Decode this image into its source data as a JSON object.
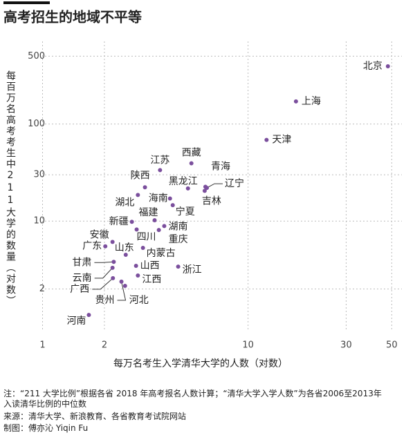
{
  "chart_data": {
    "type": "scatter",
    "title": "高考招生的地域不平等",
    "x_label": "每万名考生入学清华大学的人数（对数）",
    "y_label": "每百万名高考考生中211大学的数量（对数）",
    "x_log": true,
    "y_log": true,
    "grid": true,
    "color": "#7b4f9d",
    "xlim": [
      0.88,
      56
    ],
    "ylim": [
      0.73,
      710
    ],
    "xticks": [
      1,
      2,
      10,
      30,
      50
    ],
    "yticks": [
      2,
      10,
      30,
      100,
      500
    ],
    "points": [
      {
        "name": "北京",
        "x": 47.9,
        "y": 394
      },
      {
        "name": "上海",
        "x": 17.1,
        "y": 171
      },
      {
        "name": "天津",
        "x": 12.3,
        "y": 68.7
      },
      {
        "name": "西藏",
        "x": 5.3,
        "y": 39.4
      },
      {
        "name": "江苏",
        "x": 3.73,
        "y": 33.5
      },
      {
        "name": "青海",
        "x": 6.2,
        "y": 22.6
      },
      {
        "name": "辽宁",
        "x": 6.3,
        "y": 22.0
      },
      {
        "name": "黑龙江",
        "x": 5.1,
        "y": 21.7
      },
      {
        "name": "吉林",
        "x": 6.15,
        "y": 20.5
      },
      {
        "name": "陕西",
        "x": 3.15,
        "y": 22.3
      },
      {
        "name": "湖北",
        "x": 2.91,
        "y": 18.6
      },
      {
        "name": "海南",
        "x": 4.17,
        "y": 17.1
      },
      {
        "name": "宁夏",
        "x": 4.3,
        "y": 14.6
      },
      {
        "name": "新疆",
        "x": 2.72,
        "y": 9.84
      },
      {
        "name": "福建",
        "x": 3.51,
        "y": 10.2
      },
      {
        "name": "湖南",
        "x": 3.91,
        "y": 8.9
      },
      {
        "name": "四川",
        "x": 2.87,
        "y": 8.2
      },
      {
        "name": "重庆",
        "x": 3.68,
        "y": 8.1
      },
      {
        "name": "安徽",
        "x": 2.19,
        "y": 6.1
      },
      {
        "name": "广东",
        "x": 2.02,
        "y": 5.5
      },
      {
        "name": "内蒙古",
        "x": 3.08,
        "y": 5.3
      },
      {
        "name": "山东",
        "x": 2.54,
        "y": 4.5
      },
      {
        "name": "甘肃",
        "x": 2.22,
        "y": 3.8
      },
      {
        "name": "山西",
        "x": 2.85,
        "y": 3.46
      },
      {
        "name": "浙江",
        "x": 4.57,
        "y": 3.4
      },
      {
        "name": "云南",
        "x": 2.19,
        "y": 3.3
      },
      {
        "name": "江西",
        "x": 2.91,
        "y": 2.75
      },
      {
        "name": "广西",
        "x": 2.2,
        "y": 2.58
      },
      {
        "name": "贵州",
        "x": 2.42,
        "y": 2.38
      },
      {
        "name": "河北",
        "x": 2.52,
        "y": 2.15
      },
      {
        "name": "河南",
        "x": 1.68,
        "y": 1.08
      }
    ]
  },
  "notes": [
    "注：“211 大学比例”根据各省 2018 年高考报名人数计算；“清华大学入学人数”为各省2006至2013年",
    "入读清华比例的中位数",
    "来源：清华大学、新浪教育、各省教育考试院网站",
    "制图：傅亦沁 Yiqin Fu"
  ]
}
